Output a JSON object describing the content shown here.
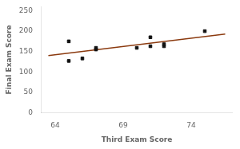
{
  "chart_data": {
    "type": "scatter",
    "xlabel": "Third Exam Score",
    "ylabel": "Final Exam Score",
    "xlim": [
      63.0,
      77.0
    ],
    "ylim": [
      0,
      260
    ],
    "xticks": [
      64,
      69,
      74
    ],
    "yticks": [
      0,
      50,
      100,
      150,
      200,
      250
    ],
    "grid": false,
    "series": [
      {
        "type": "scatter",
        "marker": "square",
        "color": "#111111",
        "x": [
          65,
          65,
          66,
          67,
          67,
          70,
          71,
          71,
          72,
          72,
          75
        ],
        "values": [
          175,
          127,
          133,
          155,
          159,
          159,
          163,
          185,
          163,
          168,
          200
        ]
      },
      {
        "type": "line",
        "color": "#8B3A0F",
        "x": [
          63.5,
          76.5
        ],
        "values": [
          140,
          193
        ]
      }
    ]
  }
}
